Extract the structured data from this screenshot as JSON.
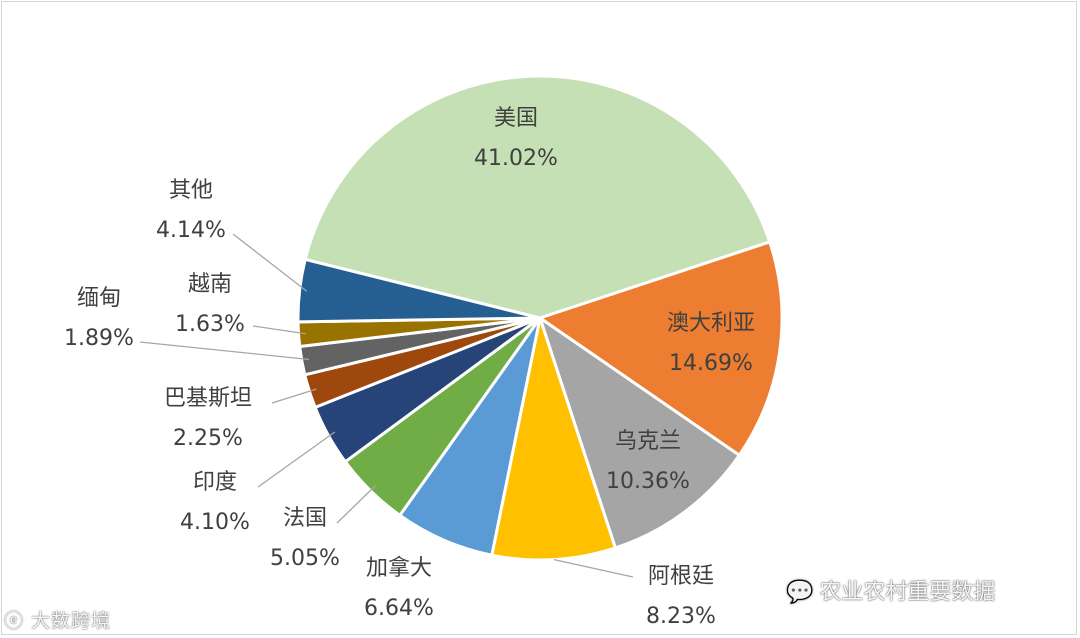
{
  "chart_data": {
    "type": "pie",
    "title": "",
    "slices": [
      {
        "name": "美国",
        "value": 41.02,
        "label": "41.02%",
        "color": "#C5E0B4"
      },
      {
        "name": "澳大利亚",
        "value": 14.69,
        "label": "14.69%",
        "color": "#ED7D31"
      },
      {
        "name": "乌克兰",
        "value": 10.36,
        "label": "10.36%",
        "color": "#A5A5A5"
      },
      {
        "name": "阿根廷",
        "value": 8.23,
        "label": "8.23%",
        "color": "#FFC000"
      },
      {
        "name": "加拿大",
        "value": 6.64,
        "label": "6.64%",
        "color": "#5B9BD5"
      },
      {
        "name": "法国",
        "value": 5.05,
        "label": "5.05%",
        "color": "#70AD47"
      },
      {
        "name": "印度",
        "value": 4.1,
        "label": "4.10%",
        "color": "#264478"
      },
      {
        "name": "巴基斯坦",
        "value": 2.25,
        "label": "2.25%",
        "color": "#9E480E"
      },
      {
        "name": "缅甸",
        "value": 1.89,
        "label": "1.89%",
        "color": "#636363"
      },
      {
        "name": "越南",
        "value": 1.63,
        "label": "1.63%",
        "color": "#997300"
      },
      {
        "name": "其他",
        "value": 4.14,
        "label": "4.14%",
        "color": "#255E91"
      }
    ]
  },
  "watermark": {
    "left_text": "大数跨境",
    "right_text": "农业农村重要数据"
  }
}
